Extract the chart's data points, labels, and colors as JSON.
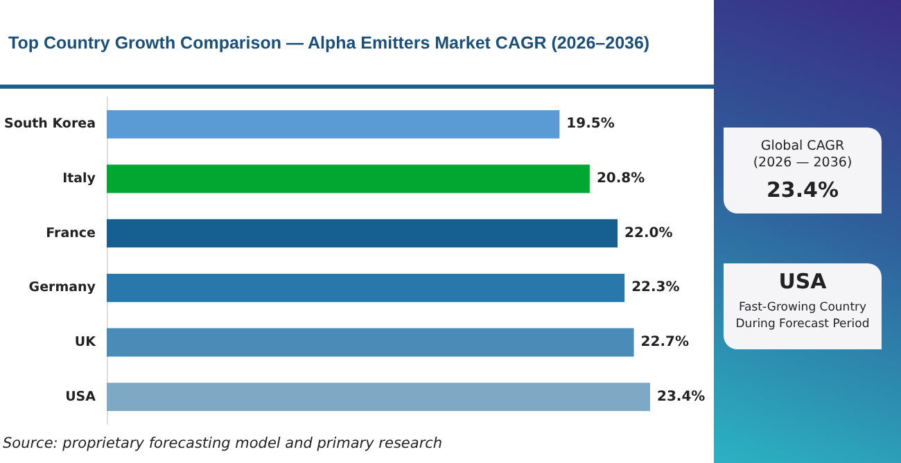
{
  "chart_data": [
    {
      "type": "bar",
      "title": "Top Country Growth Comparison — Alpha Emitters Market CAGR (2026–2036)",
      "orientation": "horizontal",
      "categories": [
        "South Korea",
        "Italy",
        "France",
        "Germany",
        "UK",
        "USA"
      ],
      "values": [
        19.5,
        20.8,
        22.0,
        22.3,
        22.7,
        23.4
      ],
      "colors": [
        "#5b9bd5",
        "#00a832",
        "#155f91",
        "#2878ab",
        "#4a8bb8",
        "#7fa8c4"
      ],
      "value_labels": [
        "19.5%",
        "20.8%",
        "22.0%",
        "22.3%",
        "22.7%",
        "23.4%"
      ],
      "annotations": [
        "Source: proprietary forecasting model and primary research"
      ]
    },
    {
      "type": "other",
      "title": "Global CAGR",
      "subtitle": "(2026 — 2036)",
      "annotations": [
        "23.4%"
      ]
    },
    {
      "type": "other",
      "title": "USA",
      "annotations": [
        "Fast-Growing Country During Forecast Period"
      ]
    }
  ]
}
